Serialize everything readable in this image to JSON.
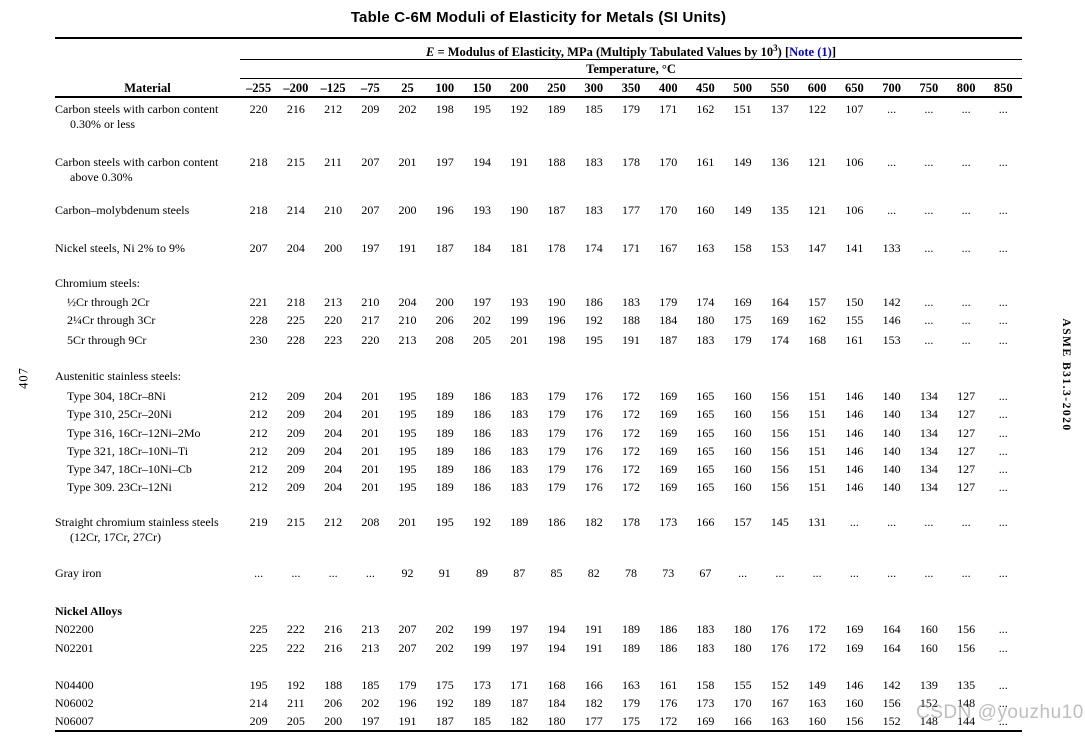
{
  "page": {
    "page_number_vertical": "407",
    "spec_label_vertical": "ASME B31.3-2020",
    "watermark": "CSDN @youzhu1017"
  },
  "colors": {
    "link_blue": "#0000dd",
    "watermark_gray": "#969696",
    "text": "#000000",
    "background": "#ffffff"
  },
  "table": {
    "title": "Table C-6M Moduli of Elasticity for Metals (SI Units)",
    "subtitle": {
      "e_symbol": "E",
      "text_before_sup": " = Modulus of Elasticity, MPa (Multiply Tabulated Values by 10",
      "sup": "3",
      "text_after_sup": ") ",
      "bracket_open": "[",
      "note_link": "Note (1)",
      "bracket_close": "]"
    },
    "temperature_label": "Temperature, °C",
    "material_header": "Material",
    "columns": [
      "–255",
      "–200",
      "–125",
      "–75",
      "25",
      "100",
      "150",
      "200",
      "250",
      "300",
      "350",
      "400",
      "450",
      "500",
      "550",
      "600",
      "650",
      "700",
      "750",
      "800",
      "850"
    ],
    "rows": [
      {
        "label": "Carbon steels with carbon content 0.30% or less",
        "values": [
          "220",
          "216",
          "212",
          "209",
          "202",
          "198",
          "195",
          "192",
          "189",
          "185",
          "179",
          "171",
          "162",
          "151",
          "137",
          "122",
          "107",
          "...",
          "...",
          "...",
          "..."
        ]
      },
      {
        "label": "Carbon steels with carbon content above 0.30%",
        "values": [
          "218",
          "215",
          "211",
          "207",
          "201",
          "197",
          "194",
          "191",
          "188",
          "183",
          "178",
          "170",
          "161",
          "149",
          "136",
          "121",
          "106",
          "...",
          "...",
          "...",
          "..."
        ]
      },
      {
        "label": "Carbon–molybdenum steels",
        "values": [
          "218",
          "214",
          "210",
          "207",
          "200",
          "196",
          "193",
          "190",
          "187",
          "183",
          "177",
          "170",
          "160",
          "149",
          "135",
          "121",
          "106",
          "...",
          "...",
          "...",
          "..."
        ]
      },
      {
        "label": "Nickel steels, Ni 2% to 9%",
        "values": [
          "207",
          "204",
          "200",
          "197",
          "191",
          "187",
          "184",
          "181",
          "178",
          "174",
          "171",
          "167",
          "163",
          "158",
          "153",
          "147",
          "141",
          "133",
          "...",
          "...",
          "..."
        ]
      },
      {
        "label": "Chromium steels:",
        "group": true
      },
      {
        "label": "½Cr through 2Cr",
        "indent": true,
        "values": [
          "221",
          "218",
          "213",
          "210",
          "204",
          "200",
          "197",
          "193",
          "190",
          "186",
          "183",
          "179",
          "174",
          "169",
          "164",
          "157",
          "150",
          "142",
          "...",
          "...",
          "..."
        ]
      },
      {
        "label": "2¼Cr through 3Cr",
        "indent": true,
        "values": [
          "228",
          "225",
          "220",
          "217",
          "210",
          "206",
          "202",
          "199",
          "196",
          "192",
          "188",
          "184",
          "180",
          "175",
          "169",
          "162",
          "155",
          "146",
          "...",
          "...",
          "..."
        ]
      },
      {
        "label": "5Cr through 9Cr",
        "indent": true,
        "values": [
          "230",
          "228",
          "223",
          "220",
          "213",
          "208",
          "205",
          "201",
          "198",
          "195",
          "191",
          "187",
          "183",
          "179",
          "174",
          "168",
          "161",
          "153",
          "...",
          "...",
          "..."
        ]
      },
      {
        "label": "Austenitic stainless steels:",
        "group": true
      },
      {
        "label": "Type 304, 18Cr–8Ni",
        "indent": true,
        "values": [
          "212",
          "209",
          "204",
          "201",
          "195",
          "189",
          "186",
          "183",
          "179",
          "176",
          "172",
          "169",
          "165",
          "160",
          "156",
          "151",
          "146",
          "140",
          "134",
          "127",
          "..."
        ]
      },
      {
        "label": "Type 310, 25Cr–20Ni",
        "indent": true,
        "values": [
          "212",
          "209",
          "204",
          "201",
          "195",
          "189",
          "186",
          "183",
          "179",
          "176",
          "172",
          "169",
          "165",
          "160",
          "156",
          "151",
          "146",
          "140",
          "134",
          "127",
          "..."
        ]
      },
      {
        "label": "Type 316, 16Cr–12Ni–2Mo",
        "indent": true,
        "values": [
          "212",
          "209",
          "204",
          "201",
          "195",
          "189",
          "186",
          "183",
          "179",
          "176",
          "172",
          "169",
          "165",
          "160",
          "156",
          "151",
          "146",
          "140",
          "134",
          "127",
          "..."
        ]
      },
      {
        "label": "Type 321, 18Cr–10Ni–Ti",
        "indent": true,
        "values": [
          "212",
          "209",
          "204",
          "201",
          "195",
          "189",
          "186",
          "183",
          "179",
          "176",
          "172",
          "169",
          "165",
          "160",
          "156",
          "151",
          "146",
          "140",
          "134",
          "127",
          "..."
        ]
      },
      {
        "label": "Type 347, 18Cr–10Ni–Cb",
        "indent": true,
        "values": [
          "212",
          "209",
          "204",
          "201",
          "195",
          "189",
          "186",
          "183",
          "179",
          "176",
          "172",
          "169",
          "165",
          "160",
          "156",
          "151",
          "146",
          "140",
          "134",
          "127",
          "..."
        ]
      },
      {
        "label": "Type 309. 23Cr–12Ni",
        "indent": true,
        "values": [
          "212",
          "209",
          "204",
          "201",
          "195",
          "189",
          "186",
          "183",
          "179",
          "176",
          "172",
          "169",
          "165",
          "160",
          "156",
          "151",
          "146",
          "140",
          "134",
          "127",
          "..."
        ]
      },
      {
        "label": "Straight chromium stainless steels (12Cr, 17Cr, 27Cr)",
        "values": [
          "219",
          "215",
          "212",
          "208",
          "201",
          "195",
          "192",
          "189",
          "186",
          "182",
          "178",
          "173",
          "166",
          "157",
          "145",
          "131",
          "...",
          "...",
          "...",
          "...",
          "..."
        ]
      },
      {
        "label": "Gray iron",
        "values": [
          "...",
          "...",
          "...",
          "...",
          "92",
          "91",
          "89",
          "87",
          "85",
          "82",
          "78",
          "73",
          "67",
          "...",
          "...",
          "...",
          "...",
          "...",
          "...",
          "...",
          "..."
        ]
      },
      {
        "label": "Nickel Alloys",
        "group": true,
        "bold": true
      },
      {
        "label": "N02200",
        "values": [
          "225",
          "222",
          "216",
          "213",
          "207",
          "202",
          "199",
          "197",
          "194",
          "191",
          "189",
          "186",
          "183",
          "180",
          "176",
          "172",
          "169",
          "164",
          "160",
          "156",
          "..."
        ]
      },
      {
        "label": "N02201",
        "values": [
          "225",
          "222",
          "216",
          "213",
          "207",
          "202",
          "199",
          "197",
          "194",
          "191",
          "189",
          "186",
          "183",
          "180",
          "176",
          "172",
          "169",
          "164",
          "160",
          "156",
          "..."
        ]
      },
      {
        "label": "N04400",
        "values": [
          "195",
          "192",
          "188",
          "185",
          "179",
          "175",
          "173",
          "171",
          "168",
          "166",
          "163",
          "161",
          "158",
          "155",
          "152",
          "149",
          "146",
          "142",
          "139",
          "135",
          "..."
        ]
      },
      {
        "label": "N06002",
        "values": [
          "214",
          "211",
          "206",
          "202",
          "196",
          "192",
          "189",
          "187",
          "184",
          "182",
          "179",
          "176",
          "173",
          "170",
          "167",
          "163",
          "160",
          "156",
          "152",
          "148",
          "..."
        ]
      },
      {
        "label": "N06007",
        "values": [
          "209",
          "205",
          "200",
          "197",
          "191",
          "187",
          "185",
          "182",
          "180",
          "177",
          "175",
          "172",
          "169",
          "166",
          "163",
          "160",
          "156",
          "152",
          "148",
          "144",
          "..."
        ]
      }
    ]
  }
}
